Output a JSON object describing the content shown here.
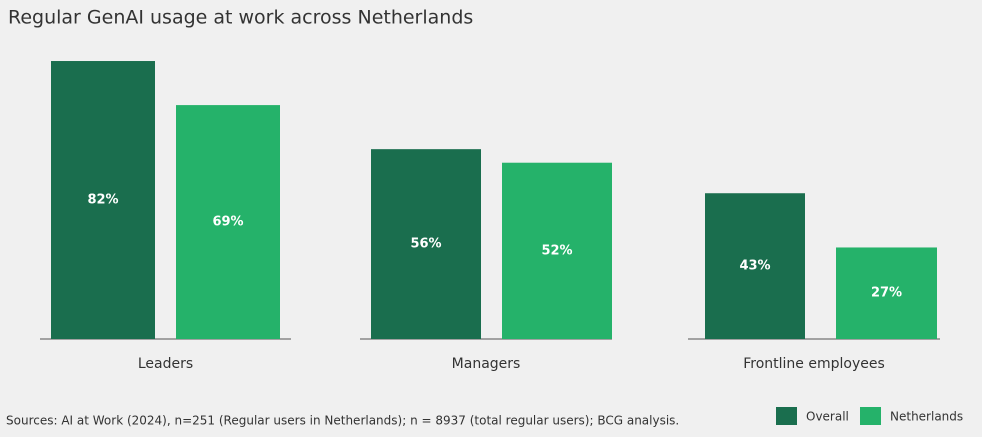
{
  "chart_data": {
    "type": "bar",
    "title": "Regular GenAI usage at work across Netherlands",
    "categories": [
      "Leaders",
      "Managers",
      "Frontline employees"
    ],
    "series": [
      {
        "name": "Overall",
        "color": "#1a6e4e",
        "values": [
          82,
          56,
          43
        ],
        "value_labels": [
          "82%",
          "56%",
          "43%"
        ]
      },
      {
        "name": "Netherlands",
        "color": "#25b26a",
        "values": [
          69,
          52,
          27
        ],
        "value_labels": [
          "69%",
          "52%",
          "27%"
        ]
      }
    ],
    "source": "Sources: AI at Work (2024), n=251 (Regular users in Netherlands); n = 8937 (total regular users); BCG analysis.",
    "legend": "bottom-right"
  }
}
